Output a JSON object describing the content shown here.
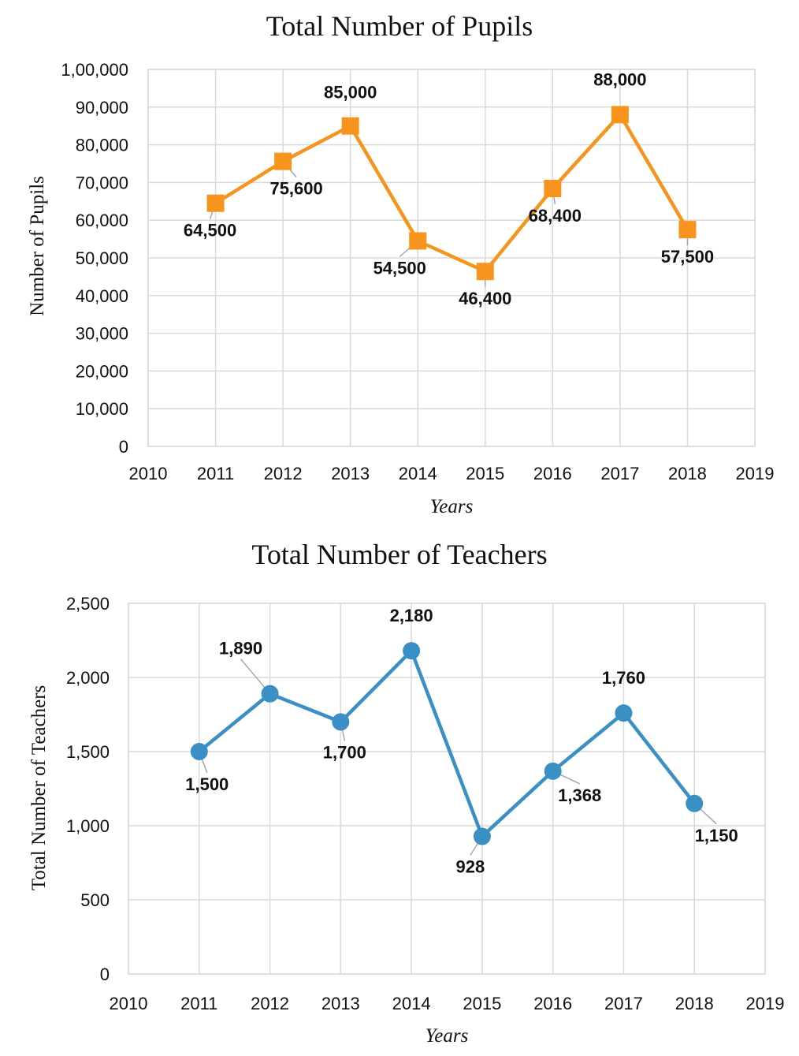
{
  "chart_data": [
    {
      "type": "line",
      "title": "Total Number of Pupils",
      "xlabel": "Years",
      "ylabel": "Number of Pupils",
      "xlim": [
        2010,
        2019
      ],
      "ylim": [
        0,
        100000
      ],
      "x_ticks": [
        "2010",
        "2011",
        "2012",
        "2013",
        "2014",
        "2015",
        "2016",
        "2017",
        "2018",
        "2019"
      ],
      "y_ticks": [
        "0",
        "10,000",
        "20,000",
        "30,000",
        "40,000",
        "50,000",
        "60,000",
        "70,000",
        "80,000",
        "90,000",
        "1,00,000"
      ],
      "grid": true,
      "color": "#f7941d",
      "marker": "square",
      "x": [
        2011,
        2012,
        2013,
        2014,
        2015,
        2016,
        2017,
        2018
      ],
      "values": [
        64500,
        75600,
        85000,
        54500,
        46400,
        68400,
        88000,
        57500
      ],
      "labels": [
        "64,500",
        "75,600",
        "85,000",
        "54,500",
        "46,400",
        "68,400",
        "88,000",
        "57,500"
      ]
    },
    {
      "type": "line",
      "title": "Total Number of Teachers",
      "xlabel": "Years",
      "ylabel": "Total Number of Teachers",
      "xlim": [
        2010,
        2019
      ],
      "ylim": [
        0,
        2500
      ],
      "x_ticks": [
        "2010",
        "2011",
        "2012",
        "2013",
        "2014",
        "2015",
        "2016",
        "2017",
        "2018",
        "2019"
      ],
      "y_ticks": [
        "0",
        "500",
        "1,000",
        "1,500",
        "2,000",
        "2,500"
      ],
      "grid": true,
      "color": "#3a8fc4",
      "marker": "circle",
      "x": [
        2011,
        2012,
        2013,
        2014,
        2015,
        2016,
        2017,
        2018
      ],
      "values": [
        1500,
        1890,
        1700,
        2180,
        928,
        1368,
        1760,
        1150
      ],
      "labels": [
        "1,500",
        "1,890",
        "1,700",
        "2,180",
        "928",
        "1,368",
        "1,760",
        "1,150"
      ]
    }
  ]
}
